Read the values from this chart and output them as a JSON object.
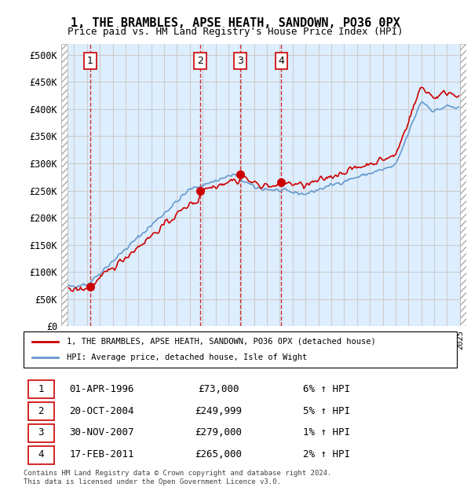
{
  "title1": "1, THE BRAMBLES, APSE HEATH, SANDOWN, PO36 0PX",
  "title2": "Price paid vs. HM Land Registry's House Price Index (HPI)",
  "ylabel_ticks": [
    "£0",
    "£50K",
    "£100K",
    "£150K",
    "£200K",
    "£250K",
    "£300K",
    "£350K",
    "£400K",
    "£450K",
    "£500K"
  ],
  "ytick_vals": [
    0,
    50000,
    100000,
    150000,
    200000,
    250000,
    300000,
    350000,
    400000,
    450000,
    500000
  ],
  "ylim": [
    0,
    520000
  ],
  "xlim_start": 1994.0,
  "xlim_end": 2025.5,
  "sale_dates": [
    1996.25,
    2004.8,
    2007.92,
    2011.12
  ],
  "sale_prices": [
    73000,
    249999,
    279000,
    265000
  ],
  "sale_labels": [
    "1",
    "2",
    "3",
    "4"
  ],
  "sale_pct": [
    "6% ↑ HPI",
    "5% ↑ HPI",
    "1% ↑ HPI",
    "2% ↑ HPI"
  ],
  "sale_dates_str": [
    "01-APR-1996",
    "20-OCT-2004",
    "30-NOV-2007",
    "17-FEB-2011"
  ],
  "sale_prices_str": [
    "£73,000",
    "£249,999",
    "£279,000",
    "£265,000"
  ],
  "legend_line1": "1, THE BRAMBLES, APSE HEATH, SANDOWN, PO36 0PX (detached house)",
  "legend_line2": "HPI: Average price, detached house, Isle of Wight",
  "footnote": "Contains HM Land Registry data © Crown copyright and database right 2024.\nThis data is licensed under the Open Government Licence v3.0.",
  "hpi_color": "#6699cc",
  "price_color": "#cc0000",
  "bg_hatch_color": "#cccccc",
  "grid_color": "#cccccc",
  "panel_bg": "#ddeeff"
}
